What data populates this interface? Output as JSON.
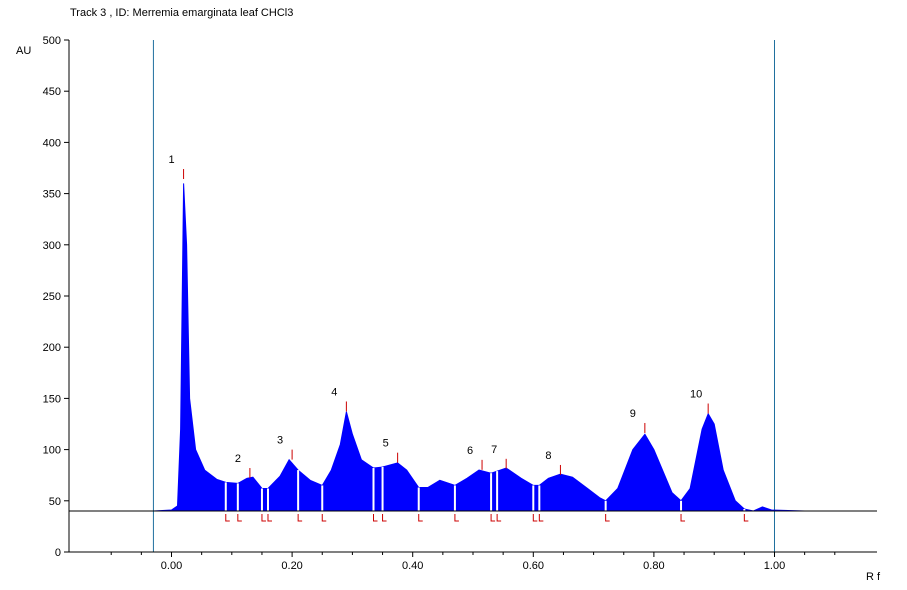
{
  "header": {
    "title": "Track  3 , ID: Merremia emarginata leaf CHCl3"
  },
  "chart_data": {
    "type": "area",
    "title": "Track  3 , ID: Merremia emarginata leaf CHCl3",
    "xlabel": "R f",
    "ylabel": "AU",
    "xlim": [
      -0.17,
      1.17
    ],
    "ylim": [
      0,
      500
    ],
    "x_ticks": [
      "0.00",
      "0.20",
      "0.40",
      "0.60",
      "0.80",
      "1.00"
    ],
    "y_ticks": [
      "0",
      "50",
      "100",
      "150",
      "200",
      "250",
      "300",
      "350",
      "400",
      "450",
      "500"
    ],
    "baseline": 40,
    "start_marker": -0.03,
    "front_marker": 1.0,
    "colors": {
      "fill": "#0000ff",
      "marker": "#cc0000",
      "axis": "#000000",
      "guide": "#1f6f9e"
    },
    "peaks": [
      {
        "label": "1",
        "rf": 0.02,
        "height": 374
      },
      {
        "label": "2",
        "rf": 0.13,
        "height": 82
      },
      {
        "label": "3",
        "rf": 0.2,
        "height": 100
      },
      {
        "label": "4",
        "rf": 0.29,
        "height": 147
      },
      {
        "label": "5",
        "rf": 0.375,
        "height": 97
      },
      {
        "label": "6",
        "rf": 0.515,
        "height": 90
      },
      {
        "label": "7",
        "rf": 0.555,
        "height": 91
      },
      {
        "label": "8",
        "rf": 0.645,
        "height": 85
      },
      {
        "label": "9",
        "rf": 0.785,
        "height": 126
      },
      {
        "label": "10",
        "rf": 0.89,
        "height": 145
      }
    ],
    "integration_bounds": [
      0.09,
      0.11,
      0.15,
      0.16,
      0.21,
      0.25,
      0.335,
      0.35,
      0.41,
      0.47,
      0.53,
      0.54,
      0.6,
      0.61,
      0.72,
      0.845,
      0.95
    ],
    "trace": [
      [
        -0.03,
        40
      ],
      [
        0.0,
        41
      ],
      [
        0.01,
        45
      ],
      [
        0.015,
        120
      ],
      [
        0.02,
        360
      ],
      [
        0.025,
        300
      ],
      [
        0.03,
        150
      ],
      [
        0.04,
        100
      ],
      [
        0.055,
        80
      ],
      [
        0.075,
        71
      ],
      [
        0.09,
        68
      ],
      [
        0.11,
        67
      ],
      [
        0.125,
        72
      ],
      [
        0.135,
        73
      ],
      [
        0.15,
        62
      ],
      [
        0.16,
        62
      ],
      [
        0.18,
        74
      ],
      [
        0.195,
        90
      ],
      [
        0.21,
        80
      ],
      [
        0.23,
        70
      ],
      [
        0.25,
        65
      ],
      [
        0.265,
        80
      ],
      [
        0.28,
        105
      ],
      [
        0.29,
        137
      ],
      [
        0.3,
        115
      ],
      [
        0.315,
        90
      ],
      [
        0.335,
        82
      ],
      [
        0.35,
        83
      ],
      [
        0.375,
        87
      ],
      [
        0.39,
        80
      ],
      [
        0.41,
        63
      ],
      [
        0.425,
        63
      ],
      [
        0.445,
        70
      ],
      [
        0.47,
        65
      ],
      [
        0.49,
        72
      ],
      [
        0.51,
        80
      ],
      [
        0.53,
        77
      ],
      [
        0.555,
        82
      ],
      [
        0.58,
        72
      ],
      [
        0.6,
        65
      ],
      [
        0.61,
        65
      ],
      [
        0.625,
        72
      ],
      [
        0.645,
        76
      ],
      [
        0.665,
        73
      ],
      [
        0.69,
        62
      ],
      [
        0.71,
        53
      ],
      [
        0.72,
        50
      ],
      [
        0.74,
        62
      ],
      [
        0.765,
        100
      ],
      [
        0.785,
        115
      ],
      [
        0.8,
        100
      ],
      [
        0.83,
        58
      ],
      [
        0.845,
        50
      ],
      [
        0.86,
        62
      ],
      [
        0.88,
        120
      ],
      [
        0.89,
        135
      ],
      [
        0.9,
        125
      ],
      [
        0.915,
        80
      ],
      [
        0.935,
        50
      ],
      [
        0.95,
        42
      ],
      [
        0.965,
        40
      ],
      [
        0.98,
        44
      ],
      [
        0.995,
        41
      ],
      [
        1.05,
        40
      ]
    ]
  }
}
